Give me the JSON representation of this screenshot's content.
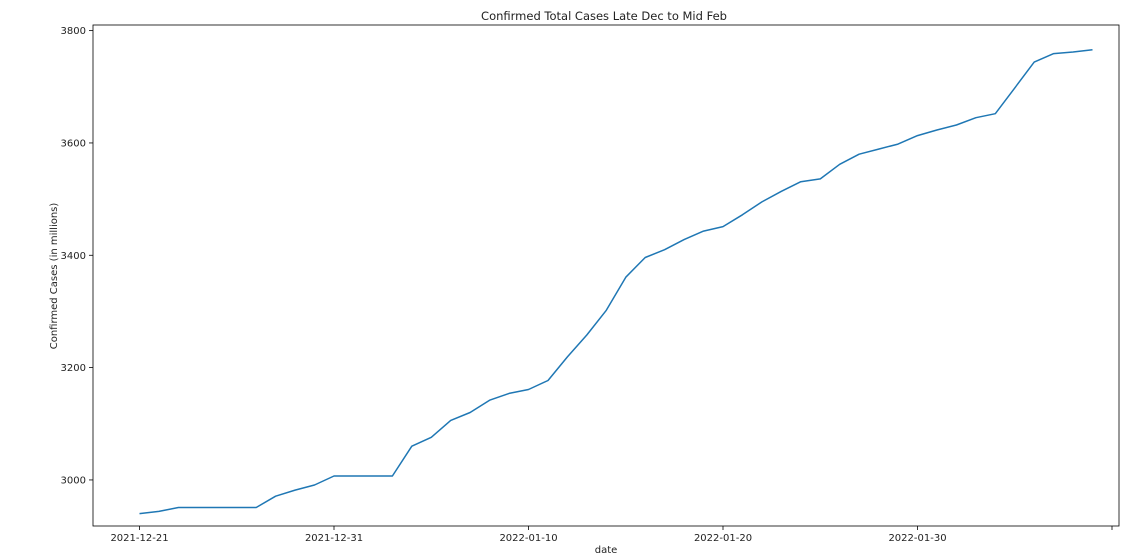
{
  "chart_data": {
    "type": "line",
    "title": "Confirmed Total Cases Late Dec to Mid Feb",
    "xlabel": "date",
    "ylabel": "Confirmed Cases (in millions)",
    "x_tick_labels": [
      "2021-12-21",
      "2021-12-31",
      "2022-01-10",
      "2022-01-20",
      "2022-01-30"
    ],
    "y_ticks": [
      3000,
      3200,
      3400,
      3600,
      3800
    ],
    "ylim": [
      2918,
      3810
    ],
    "grid": false,
    "line_color": "#1f77b4",
    "series": [
      {
        "x": [
          "2021-12-21",
          "2021-12-22",
          "2021-12-23",
          "2021-12-24",
          "2021-12-25",
          "2021-12-26",
          "2021-12-27",
          "2021-12-28",
          "2021-12-29",
          "2021-12-30",
          "2021-12-31",
          "2022-01-01",
          "2022-01-02",
          "2022-01-03",
          "2022-01-04",
          "2022-01-05",
          "2022-01-06",
          "2022-01-07",
          "2022-01-08",
          "2022-01-09",
          "2022-01-10",
          "2022-01-11",
          "2022-01-12",
          "2022-01-13",
          "2022-01-14",
          "2022-01-15",
          "2022-01-16",
          "2022-01-17",
          "2022-01-18",
          "2022-01-19",
          "2022-01-20",
          "2022-01-21",
          "2022-01-22",
          "2022-01-23",
          "2022-01-24",
          "2022-01-25",
          "2022-01-26",
          "2022-01-27",
          "2022-01-28",
          "2022-01-29",
          "2022-01-30",
          "2022-01-31",
          "2022-02-01",
          "2022-02-02",
          "2022-02-03",
          "2022-02-04",
          "2022-02-05",
          "2022-02-06",
          "2022-02-07",
          "2022-02-08"
        ],
        "values": [
          2940,
          2944,
          2951,
          2951,
          2951,
          2951,
          2951,
          2971,
          2982,
          2991,
          3007,
          3007,
          3007,
          3007,
          3060,
          3076,
          3106,
          3120,
          3142,
          3154,
          3161,
          3177,
          3219,
          3258,
          3302,
          3361,
          3396,
          3410,
          3428,
          3443,
          3451,
          3472,
          3495,
          3514,
          3531,
          3536,
          3562,
          3580,
          3589,
          3598,
          3613,
          3623,
          3632,
          3645,
          3652,
          3698,
          3744,
          3759,
          3762,
          3766
        ]
      }
    ]
  }
}
